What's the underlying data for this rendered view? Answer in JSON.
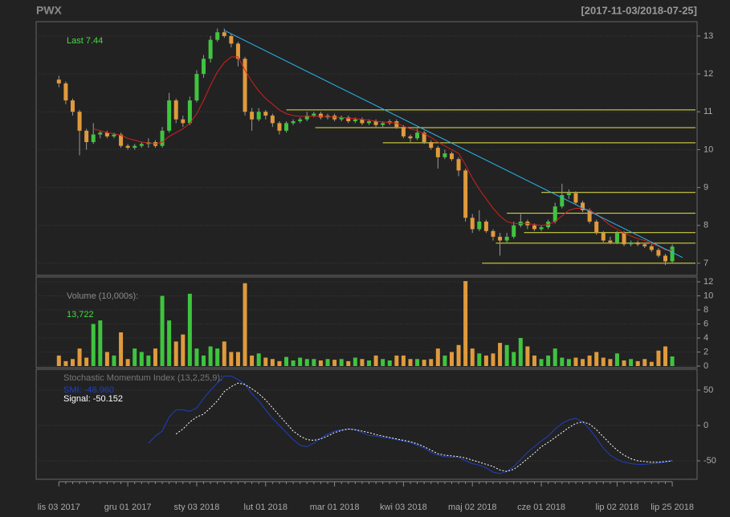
{
  "chart_data": [
    {
      "type": "candlestick",
      "title": "PWX",
      "subtitle": "[2017-11-03/2018-07-25]",
      "annotation": "Last 7.44",
      "annotation_color": "#44dd44",
      "xlim": [
        -3.3,
        92.6
      ],
      "ylim": [
        6.68,
        13.38
      ],
      "yticks": [
        7,
        8,
        9,
        10,
        11,
        12,
        13
      ],
      "grid": true,
      "up_color": "#3fc43f",
      "down_color": "#e09a3c",
      "open": [
        11.85,
        11.75,
        11.3,
        11.0,
        10.5,
        10.2,
        10.4,
        10.45,
        10.35,
        10.4,
        10.1,
        10.05,
        10.1,
        10.15,
        10.2,
        10.1,
        10.5,
        11.3,
        10.8,
        10.7,
        11.3,
        12.0,
        12.4,
        12.9,
        13.1,
        13.0,
        12.8,
        12.4,
        11.0,
        10.8,
        11.0,
        10.9,
        10.7,
        10.5,
        10.7,
        10.75,
        10.8,
        10.9,
        10.95,
        10.85,
        10.9,
        10.8,
        10.85,
        10.75,
        10.8,
        10.7,
        10.75,
        10.65,
        10.7,
        10.75,
        10.6,
        10.35,
        10.3,
        10.45,
        10.2,
        10.05,
        9.8,
        9.9,
        9.75,
        9.45,
        8.2,
        7.9,
        8.1,
        7.85,
        7.7,
        7.6,
        7.7,
        8.0,
        8.1,
        8.0,
        7.9,
        7.95,
        8.1,
        8.5,
        8.8,
        8.85,
        8.6,
        8.4,
        8.1,
        7.8,
        7.6,
        7.55,
        7.8,
        7.5,
        7.55,
        7.5,
        7.45,
        7.35,
        7.2,
        7.05
      ],
      "high": [
        11.95,
        11.8,
        11.35,
        11.05,
        10.55,
        10.7,
        10.5,
        10.5,
        10.45,
        10.45,
        10.15,
        10.15,
        10.2,
        10.3,
        10.25,
        10.6,
        11.5,
        11.35,
        10.9,
        11.4,
        12.1,
        12.5,
        13.0,
        13.2,
        13.2,
        13.05,
        12.85,
        12.45,
        11.1,
        11.1,
        11.05,
        10.95,
        10.75,
        10.75,
        10.8,
        10.85,
        11.0,
        11.0,
        11.0,
        10.95,
        10.95,
        10.9,
        10.9,
        10.85,
        10.85,
        10.8,
        10.8,
        10.75,
        10.8,
        10.8,
        10.65,
        10.4,
        10.55,
        10.5,
        10.25,
        10.1,
        10.0,
        9.95,
        9.8,
        9.5,
        8.3,
        8.4,
        8.15,
        7.9,
        7.8,
        7.8,
        8.1,
        8.3,
        8.15,
        8.05,
        8.0,
        8.15,
        8.6,
        9.1,
        8.95,
        8.9,
        8.65,
        8.45,
        8.15,
        7.85,
        7.7,
        7.85,
        7.85,
        7.6,
        7.6,
        7.55,
        7.5,
        7.4,
        7.25,
        7.5
      ],
      "low": [
        11.65,
        11.2,
        10.9,
        9.85,
        10.0,
        10.15,
        10.3,
        10.3,
        10.3,
        10.05,
        10.0,
        10.0,
        10.05,
        10.05,
        10.05,
        10.05,
        10.45,
        10.7,
        10.6,
        10.65,
        11.25,
        11.9,
        12.3,
        12.85,
        12.95,
        12.7,
        12.2,
        10.9,
        10.5,
        10.75,
        10.8,
        10.6,
        10.4,
        10.45,
        10.65,
        10.7,
        10.75,
        10.85,
        10.8,
        10.8,
        10.75,
        10.75,
        10.7,
        10.7,
        10.65,
        10.65,
        10.6,
        10.6,
        10.65,
        10.55,
        10.3,
        10.2,
        10.25,
        10.15,
        10.0,
        9.5,
        9.75,
        9.7,
        9.3,
        8.1,
        7.8,
        7.85,
        7.8,
        7.6,
        7.2,
        7.55,
        7.65,
        7.95,
        7.9,
        7.85,
        7.85,
        7.9,
        8.05,
        8.45,
        8.7,
        8.55,
        8.35,
        8.05,
        7.75,
        7.55,
        7.5,
        7.5,
        7.45,
        7.45,
        7.45,
        7.4,
        7.3,
        7.15,
        6.95,
        7.0
      ],
      "close": [
        11.75,
        11.3,
        11.0,
        10.5,
        10.2,
        10.4,
        10.45,
        10.35,
        10.4,
        10.1,
        10.05,
        10.1,
        10.15,
        10.2,
        10.1,
        10.5,
        11.3,
        10.8,
        10.7,
        11.3,
        12.0,
        12.4,
        12.9,
        13.1,
        13.0,
        12.8,
        12.4,
        11.0,
        10.8,
        11.0,
        10.9,
        10.7,
        10.5,
        10.7,
        10.75,
        10.8,
        10.9,
        10.95,
        10.85,
        10.9,
        10.8,
        10.85,
        10.75,
        10.8,
        10.7,
        10.75,
        10.65,
        10.7,
        10.75,
        10.6,
        10.35,
        10.3,
        10.45,
        10.2,
        10.05,
        9.8,
        9.9,
        9.75,
        9.45,
        8.2,
        7.9,
        8.1,
        7.85,
        7.7,
        7.6,
        7.7,
        8.0,
        8.1,
        8.0,
        7.9,
        7.95,
        8.1,
        8.5,
        8.8,
        8.85,
        8.6,
        8.4,
        8.1,
        7.8,
        7.6,
        7.55,
        7.8,
        7.5,
        7.55,
        7.5,
        7.45,
        7.35,
        7.2,
        7.05,
        7.44
      ],
      "ma": {
        "color": "#d42020",
        "values": [
          null,
          null,
          null,
          null,
          null,
          10.55,
          10.5,
          10.45,
          10.42,
          10.38,
          10.3,
          10.25,
          10.2,
          10.18,
          10.15,
          10.2,
          10.35,
          10.45,
          10.55,
          10.7,
          10.95,
          11.3,
          11.7,
          12.05,
          12.3,
          12.45,
          12.45,
          12.1,
          11.8,
          11.55,
          11.35,
          11.2,
          11.05,
          10.95,
          10.9,
          10.88,
          10.88,
          10.88,
          10.88,
          10.87,
          10.86,
          10.85,
          10.83,
          10.82,
          10.8,
          10.78,
          10.75,
          10.73,
          10.72,
          10.7,
          10.62,
          10.55,
          10.5,
          10.42,
          10.32,
          10.2,
          10.1,
          10.0,
          9.9,
          9.6,
          9.25,
          8.95,
          8.7,
          8.45,
          8.25,
          8.1,
          8.05,
          8.05,
          8.05,
          8.02,
          8.0,
          8.02,
          8.1,
          8.25,
          8.4,
          8.45,
          8.45,
          8.4,
          8.3,
          8.15,
          8.0,
          7.9,
          7.8,
          7.72,
          7.65,
          7.6,
          7.52,
          7.45,
          7.35,
          7.35
        ]
      },
      "trend_line": {
        "color": "#29b6f0",
        "x": [
          24,
          90.5
        ],
        "y": [
          13.15,
          7.15
        ]
      },
      "levels": {
        "color": "#e6e64a",
        "values": [
          11.05,
          10.58,
          10.18,
          8.87,
          8.32,
          7.81,
          7.53,
          7.0
        ],
        "start": [
          33,
          37.2,
          47,
          70,
          65,
          67.5,
          63.4,
          61.4
        ]
      }
    },
    {
      "type": "bar",
      "title": "Volume (10,000s):",
      "annotation": "13,722",
      "annotation_color": "#44dd44",
      "xlim": [
        -3.3,
        92.6
      ],
      "ylim": [
        -0.23,
        12.69
      ],
      "yticks": [
        0,
        2,
        4,
        6,
        8,
        10,
        12
      ],
      "grid": true,
      "values": [
        1.5,
        0.7,
        1.0,
        2.5,
        1.2,
        6.0,
        6.5,
        2.0,
        1.5,
        4.8,
        1.0,
        2.5,
        2.0,
        1.5,
        2.5,
        10.0,
        6.5,
        3.5,
        4.5,
        10.3,
        2.5,
        1.5,
        2.8,
        2.5,
        3.5,
        2.0,
        2.0,
        11.8,
        1.5,
        1.8,
        1.2,
        1.0,
        0.7,
        1.3,
        0.8,
        1.2,
        1.0,
        1.0,
        0.8,
        1.0,
        0.9,
        1.0,
        0.7,
        1.2,
        1.0,
        0.8,
        1.5,
        1.0,
        0.8,
        1.5,
        1.5,
        1.0,
        1.0,
        0.9,
        1.0,
        2.5,
        1.5,
        2.0,
        3.0,
        12.1,
        2.5,
        1.8,
        1.5,
        1.8,
        3.3,
        3.0,
        2.0,
        4.0,
        2.8,
        1.5,
        1.0,
        1.5,
        2.5,
        1.2,
        1.0,
        1.2,
        1.0,
        1.5,
        2.0,
        1.2,
        1.0,
        1.8,
        0.8,
        1.0,
        0.7,
        1.0,
        0.6,
        2.2,
        2.8,
        1.37
      ]
    },
    {
      "type": "line",
      "title": "Stochastic Momentum Index (13,2,25,9):",
      "annotations": [
        {
          "text": "SMI: -48.960",
          "color": "#1f3fc4"
        },
        {
          "text": "Signal: -50.152",
          "color": "#ffffff"
        }
      ],
      "xlim": [
        -3.3,
        92.6
      ],
      "ylim": [
        -76.1,
        79.5
      ],
      "yticks": [
        -50,
        0,
        50
      ],
      "grid": true,
      "categories": [
        "lis 03 2017",
        null,
        null,
        null,
        null,
        null,
        null,
        null,
        null,
        null,
        "gru 01 2017",
        null,
        null,
        null,
        null,
        null,
        null,
        null,
        null,
        null,
        "sty 03 2018",
        null,
        null,
        null,
        null,
        null,
        null,
        null,
        null,
        null,
        "lut 01 2018",
        null,
        null,
        null,
        null,
        null,
        null,
        null,
        null,
        null,
        "mar 01 2018",
        null,
        null,
        null,
        null,
        null,
        null,
        null,
        null,
        null,
        "kwi 03 2018",
        null,
        null,
        null,
        null,
        null,
        null,
        null,
        null,
        null,
        "maj 02 2018",
        null,
        null,
        null,
        null,
        null,
        null,
        null,
        null,
        null,
        "cze 01 2018",
        null,
        null,
        null,
        null,
        null,
        null,
        null,
        null,
        null,
        null,
        "lip 02 2018",
        null,
        null,
        null,
        null,
        null,
        null,
        null,
        "lip 25 2018"
      ],
      "series": [
        {
          "color": "#1f3fc4",
          "line_style": "solid",
          "values": [
            null,
            null,
            null,
            null,
            null,
            null,
            null,
            null,
            null,
            null,
            null,
            null,
            null,
            -25,
            -15,
            -8,
            12,
            22,
            22,
            20,
            25,
            38,
            50,
            60,
            70,
            70,
            65,
            58,
            45,
            35,
            22,
            10,
            0,
            -10,
            -20,
            -28,
            -30,
            -25,
            -18,
            -12,
            -8,
            -6,
            -5,
            -6,
            -10,
            -14,
            -15,
            -17,
            -18,
            -20,
            -22,
            -24,
            -28,
            -32,
            -38,
            -42,
            -44,
            -45,
            -45,
            -50,
            -54,
            -56,
            -60,
            -66,
            -68,
            -65,
            -58,
            -48,
            -38,
            -30,
            -22,
            -15,
            -5,
            3,
            8,
            10,
            5,
            -5,
            -18,
            -32,
            -42,
            -48,
            -52,
            -54,
            -55,
            -55,
            -54,
            -53,
            -52,
            -48.96
          ]
        },
        {
          "color": "#ffffff",
          "line_style": "dashed",
          "values": [
            null,
            null,
            null,
            null,
            null,
            null,
            null,
            null,
            null,
            null,
            null,
            null,
            null,
            null,
            null,
            null,
            null,
            -12,
            -5,
            5,
            12,
            16,
            25,
            35,
            48,
            55,
            60,
            58,
            52,
            45,
            36,
            25,
            14,
            3,
            -8,
            -15,
            -20,
            -21,
            -19,
            -15,
            -10,
            -7,
            -5,
            -6,
            -8,
            -10,
            -13,
            -15,
            -17,
            -19,
            -21,
            -23,
            -26,
            -30,
            -35,
            -40,
            -42,
            -43,
            -44,
            -46,
            -49,
            -52,
            -55,
            -58,
            -63,
            -65,
            -62,
            -55,
            -47,
            -39,
            -30,
            -24,
            -17,
            -10,
            -3,
            3,
            5,
            2,
            -6,
            -16,
            -26,
            -35,
            -42,
            -47,
            -50,
            -51,
            -52,
            -52,
            -51,
            -50.152
          ]
        }
      ]
    }
  ]
}
